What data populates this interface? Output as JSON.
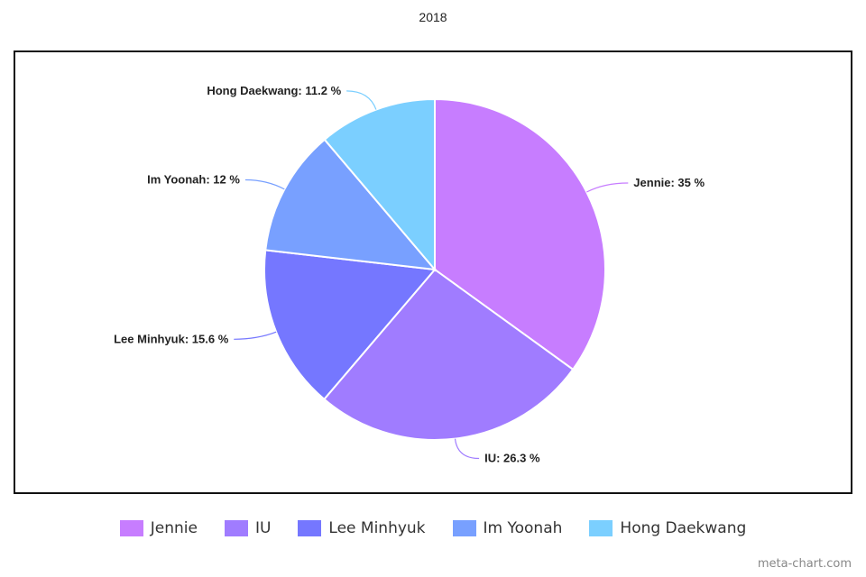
{
  "chart_data": {
    "type": "pie",
    "title": "2018",
    "categories": [
      "Jennie",
      "IU",
      "Lee Minhyuk",
      "Im Yoonah",
      "Hong Daekwang"
    ],
    "values": [
      35,
      26.3,
      15.6,
      12,
      11.2
    ],
    "unit": "%",
    "colors": [
      "#c77dff",
      "#a07cff",
      "#7577ff",
      "#78a0ff",
      "#7bcfff"
    ],
    "data_labels": [
      "Jennie: 35 %",
      "IU: 26.3 %",
      "Lee Minhyuk: 15.6 %",
      "Im Yoonah: 12 %",
      "Hong Daekwang: 11.2 %"
    ],
    "legend_position": "bottom"
  },
  "watermark": "meta-chart.com"
}
